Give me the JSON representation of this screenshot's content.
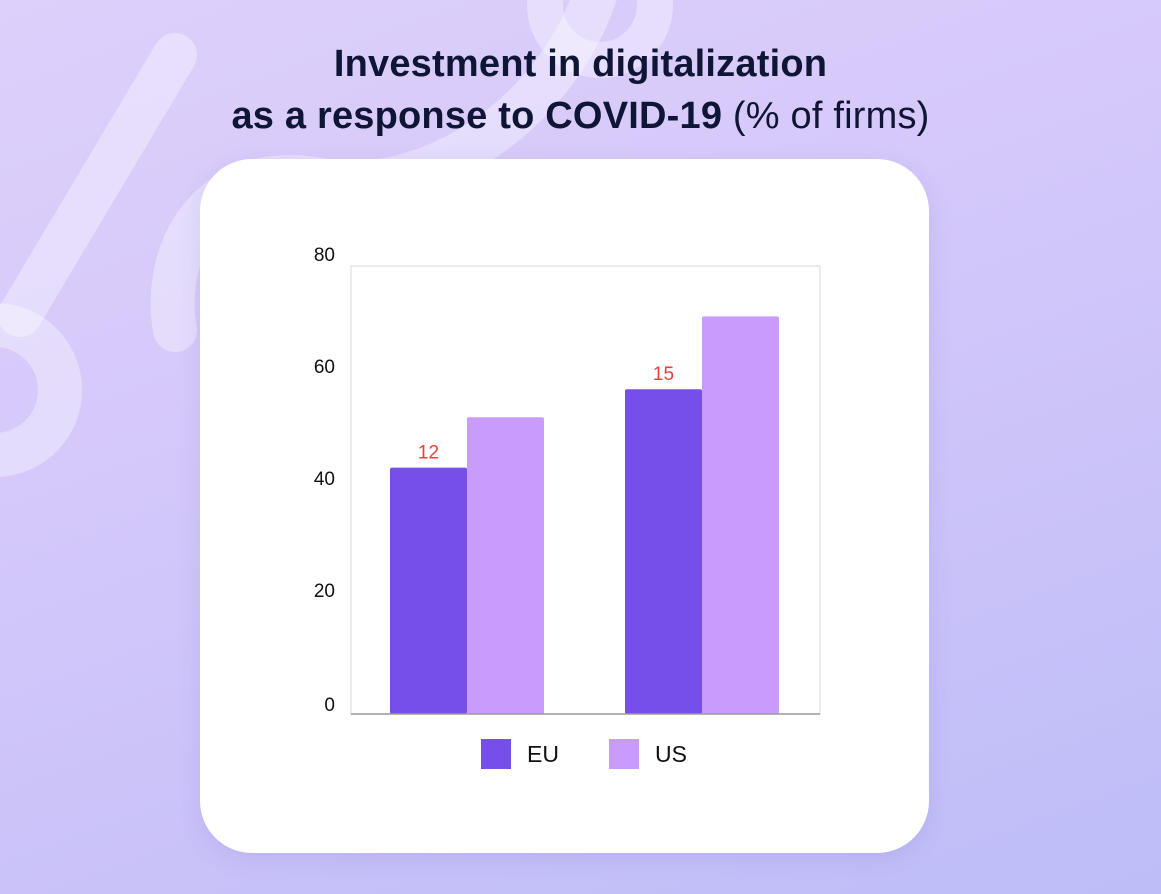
{
  "title": {
    "line1": "Investment in digitalization",
    "line2_bold": "as a response to COVID-19",
    "line2_light": " (% of firms)"
  },
  "colors": {
    "eu": "#764ee9",
    "us": "#c99bfb",
    "data_label": "#e8413a"
  },
  "chart_data": {
    "type": "bar",
    "title": "Investment in digitalization as a response to COVID-19 (% of firms)",
    "xlabel": "",
    "ylabel": "",
    "ylim": [
      0,
      80
    ],
    "y_ticks": [
      0,
      20,
      40,
      60,
      80
    ],
    "categories": [
      "",
      ""
    ],
    "grid": false,
    "legend_position": "bottom",
    "series": [
      {
        "name": "EU",
        "values": [
          44,
          58
        ],
        "data_labels": [
          "12",
          "15"
        ]
      },
      {
        "name": "US",
        "values": [
          53,
          71
        ],
        "data_labels": [
          "",
          ""
        ]
      }
    ]
  }
}
